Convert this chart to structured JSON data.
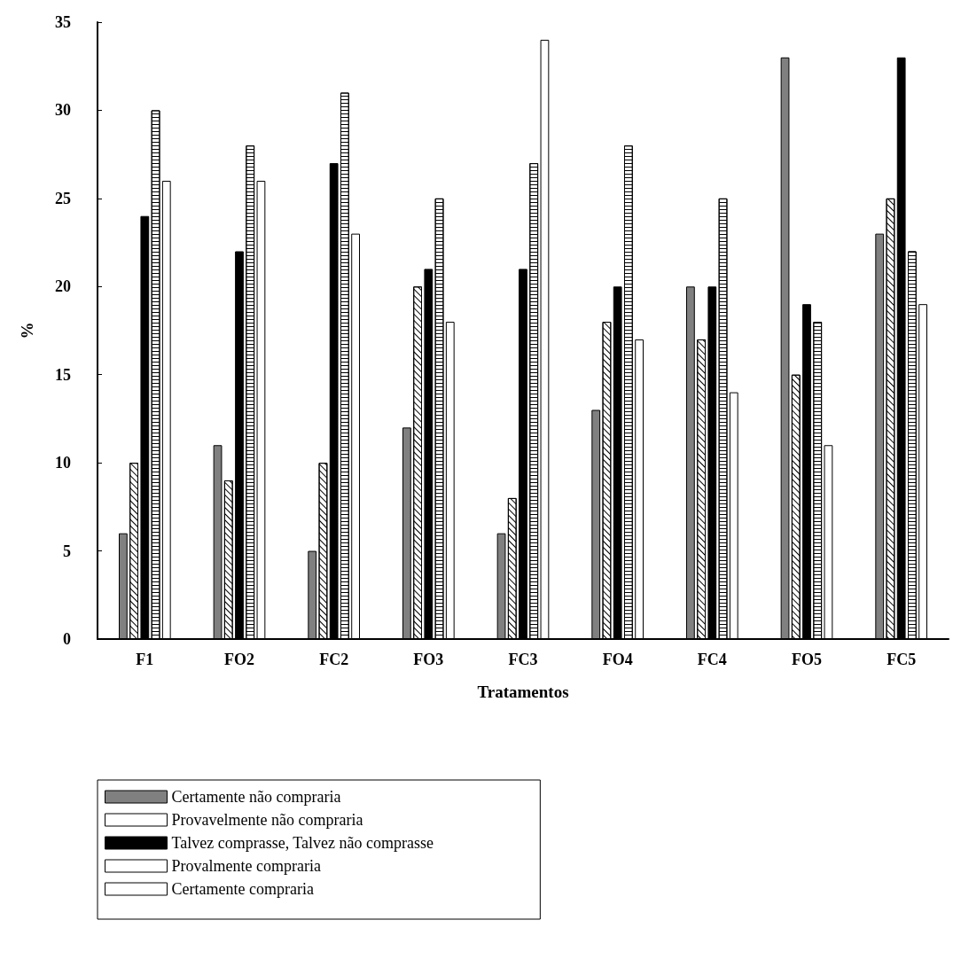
{
  "chart_data": {
    "type": "bar",
    "xlabel": "Tratamentos",
    "ylabel": "%",
    "categories": [
      "F1",
      "FO2",
      "FC2",
      "FO3",
      "FC3",
      "FO4",
      "FC4",
      "FO5",
      "FC5"
    ],
    "series": [
      {
        "name": "Certamente não compraria",
        "color": "#808080",
        "values": [
          6,
          11,
          5,
          12,
          6,
          13,
          20,
          33,
          23
        ]
      },
      {
        "name": "Provavelmente não compraria",
        "color": "#ffffff",
        "values": [
          10,
          9,
          10,
          20,
          8,
          18,
          17,
          15,
          25
        ]
      },
      {
        "name": "Talvez comprasse, Talvez não comprasse",
        "color": "#000000",
        "values": [
          24,
          22,
          27,
          21,
          21,
          20,
          20,
          19,
          33
        ]
      },
      {
        "name": "Provalmente compraria",
        "color": "#ffffff",
        "values": [
          30,
          28,
          31,
          25,
          27,
          28,
          25,
          18,
          22
        ]
      },
      {
        "name": "Certamente compraria",
        "color": "#ffffff",
        "values": [
          26,
          26,
          23,
          18,
          34,
          17,
          14,
          11,
          19
        ]
      }
    ],
    "ylim": [
      0,
      35
    ],
    "yticks": [
      0,
      5,
      10,
      15,
      20,
      25,
      30,
      35
    ],
    "grid": false,
    "legend": "bottom left"
  }
}
